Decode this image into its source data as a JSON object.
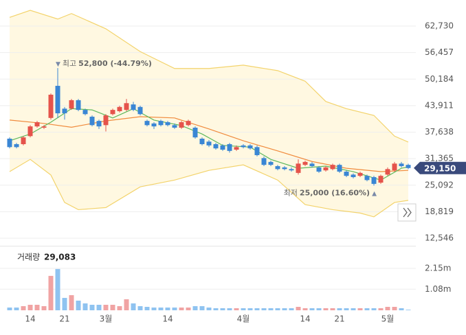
{
  "chart_data": {
    "type": "candlestick",
    "categories": [
      null,
      null,
      null,
      "14",
      null,
      null,
      null,
      null,
      "21",
      null,
      null,
      null,
      null,
      null,
      "3월",
      null,
      null,
      null,
      null,
      null,
      null,
      null,
      null,
      "14",
      null,
      null,
      null,
      null,
      null,
      null,
      null,
      null,
      null,
      null,
      "4월",
      null,
      null,
      null,
      null,
      null,
      null,
      null,
      null,
      "14",
      null,
      null,
      null,
      null,
      "21",
      null,
      null,
      null,
      null,
      null,
      null,
      "5월",
      null,
      null,
      null
    ],
    "open": [
      36100,
      34800,
      34800,
      36700,
      39000,
      38700,
      41000,
      48600,
      43200,
      43200,
      45200,
      42900,
      41300,
      40300,
      39300,
      41900,
      42600,
      42900,
      44200,
      43600,
      40300,
      39700,
      40300,
      40000,
      39300,
      38700,
      39300,
      38700,
      36100,
      35400,
      34800,
      34500,
      34800,
      33500,
      34500,
      34500,
      34100,
      31500,
      30600,
      29600,
      29300,
      28900,
      28000,
      29900,
      30200,
      29300,
      28600,
      28900,
      29900,
      28300,
      27600,
      27300,
      27300,
      27000,
      25700,
      27600,
      28600,
      30200,
      29900
    ],
    "high": [
      36400,
      35100,
      36700,
      39300,
      40300,
      39300,
      46800,
      52800,
      43600,
      45500,
      45500,
      43200,
      41600,
      40600,
      41900,
      43200,
      43900,
      45500,
      44800,
      43900,
      40600,
      40000,
      40600,
      40300,
      39700,
      40300,
      40600,
      39000,
      36400,
      35800,
      35100,
      34800,
      35100,
      34500,
      34800,
      34800,
      34500,
      31900,
      30900,
      29900,
      29600,
      29300,
      31200,
      30900,
      30600,
      29600,
      29600,
      30200,
      30200,
      28600,
      27900,
      28300,
      27600,
      27300,
      27600,
      29300,
      30600,
      30600,
      30200
    ],
    "low": [
      33800,
      33800,
      34500,
      36400,
      38700,
      38400,
      40600,
      41000,
      40600,
      42900,
      42600,
      41600,
      39000,
      38400,
      37800,
      41600,
      42300,
      42600,
      42600,
      41600,
      39000,
      38400,
      39000,
      39000,
      38400,
      38400,
      39000,
      36100,
      34500,
      34100,
      33500,
      33200,
      32800,
      33200,
      33800,
      33500,
      31900,
      29600,
      29600,
      28600,
      28600,
      28300,
      27600,
      29600,
      29300,
      28000,
      28300,
      28600,
      28000,
      27000,
      26700,
      27000,
      26000,
      25000,
      25400,
      27300,
      28300,
      29300,
      28900
    ],
    "close": [
      34100,
      34100,
      36400,
      39000,
      40000,
      39000,
      46500,
      42100,
      42100,
      45200,
      42900,
      41900,
      39300,
      39000,
      41600,
      42900,
      43600,
      44500,
      42900,
      41900,
      39300,
      39000,
      39300,
      39300,
      38700,
      40000,
      40300,
      36400,
      34800,
      34500,
      33800,
      33500,
      33200,
      34100,
      34100,
      33800,
      32200,
      29900,
      29900,
      28900,
      28900,
      28600,
      30200,
      30600,
      29600,
      28300,
      29300,
      29900,
      28300,
      27300,
      27000,
      28000,
      26300,
      25400,
      27300,
      28900,
      30200,
      29600,
      29150
    ],
    "up_color": "#e5534b",
    "down_color": "#3a86d4",
    "ylim": [
      11250,
      66470
    ],
    "yticks": [
      {
        "value": 62730,
        "label": "62,730"
      },
      {
        "value": 56457,
        "label": "56,457"
      },
      {
        "value": 50184,
        "label": "50,184"
      },
      {
        "value": 43911,
        "label": "43,911"
      },
      {
        "value": 37638,
        "label": "37,638"
      },
      {
        "value": 31365,
        "label": "31,365"
      },
      {
        "value": 25092,
        "label": "25,092"
      },
      {
        "value": 18819,
        "label": "18,819"
      },
      {
        "value": 12546,
        "label": "12,546"
      }
    ],
    "grid": true,
    "band_fill": "#fff8e1",
    "overlays": [
      {
        "color": "#f3d36b",
        "x": [
          0,
          3,
          7,
          9,
          14,
          19,
          24,
          29,
          34,
          39,
          43,
          46,
          49,
          53,
          56,
          58
        ],
        "values": [
          64800,
          66470,
          64400,
          65700,
          62100,
          56700,
          52700,
          52700,
          53500,
          52200,
          49700,
          44900,
          43200,
          41600,
          36700,
          35300
        ]
      },
      {
        "color": "#f3d36b",
        "x": [
          0,
          3,
          6,
          8,
          10,
          14,
          19,
          24,
          29,
          34,
          39,
          43,
          47,
          51,
          53,
          56,
          58
        ],
        "values": [
          28300,
          31200,
          27500,
          21000,
          19300,
          19800,
          24700,
          26300,
          28600,
          29900,
          26300,
          20500,
          19300,
          18500,
          17600,
          21000,
          21500
        ]
      },
      {
        "color": "#f08a3c",
        "x": [
          0,
          5,
          9,
          14,
          19,
          24,
          29,
          34,
          39,
          44,
          49,
          54,
          58
        ],
        "values": [
          40500,
          39700,
          38800,
          40300,
          41300,
          41000,
          38400,
          35600,
          33200,
          30700,
          29100,
          28300,
          28600
        ]
      },
      {
        "color": "#5cb85c",
        "x": [
          0,
          3,
          6,
          9,
          12,
          15,
          18,
          21,
          25,
          28,
          31,
          35,
          38,
          42,
          46,
          50,
          54,
          57,
          58
        ],
        "values": [
          35600,
          37200,
          40000,
          43200,
          42900,
          41000,
          43200,
          40500,
          39200,
          37200,
          34500,
          34100,
          31200,
          29100,
          29600,
          28300,
          26300,
          29100,
          29400
        ]
      }
    ],
    "high_annotation": {
      "marker": "▼",
      "label": "최고",
      "value": "52,800 (-44.79%)"
    },
    "low_annotation": {
      "label": "최저",
      "value": "25,000 (16.60%)",
      "marker": "▲"
    },
    "current_price": {
      "value": 29150,
      "label": "29,150"
    },
    "current_price_color": "#3a4a7c",
    "volume": {
      "title": "거래량",
      "current": "29,083",
      "values": [
        141000,
        141000,
        212000,
        282000,
        282000,
        212000,
        1763000,
        2115000,
        635000,
        776000,
        494000,
        353000,
        282000,
        282000,
        282000,
        282000,
        212000,
        564000,
        353000,
        212000,
        176000,
        141000,
        141000,
        141000,
        141000,
        141000,
        141000,
        212000,
        212000,
        141000,
        106000,
        106000,
        106000,
        106000,
        106000,
        106000,
        106000,
        106000,
        106000,
        106000,
        106000,
        106000,
        176000,
        106000,
        106000,
        106000,
        106000,
        106000,
        106000,
        106000,
        106000,
        106000,
        106000,
        106000,
        106000,
        176000,
        176000,
        106000,
        29083
      ],
      "up_color": "#f0a3a3",
      "down_color": "#8fc3f0",
      "ylim": [
        0,
        3060000
      ],
      "yticks": [
        {
          "value": 1080000,
          "label": "1.08m"
        },
        {
          "value": 2150000,
          "label": "2.15m"
        }
      ]
    }
  }
}
